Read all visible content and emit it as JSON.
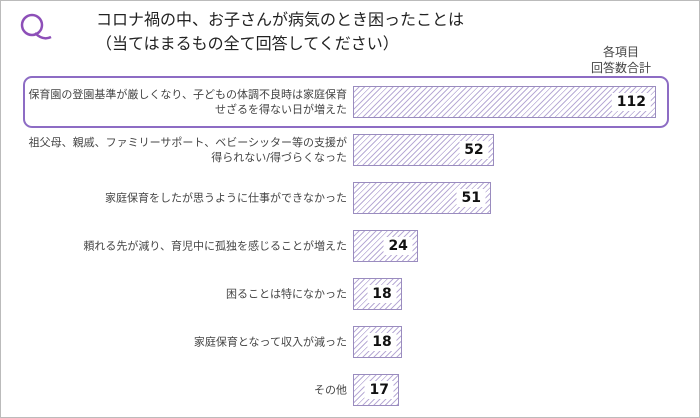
{
  "chart_data": {
    "type": "barh",
    "title": "コロナ禍の中、お子さんが病気のとき困ったことは",
    "subtitle": "（当てはまるもの全て回答してください）",
    "value_header": [
      "各項目",
      "回答数合計"
    ],
    "categories": [
      "保育園の登園基準が厳しくなり、子どもの体調不良時は家庭保育せざるを得ない日が増えた",
      "祖父母、親戚、ファミリーサポート、ベビーシッター等の支援が得られない/得づらくなった",
      "家庭保育をしたが思うように仕事ができなかった",
      "頼れる先が減り、育児中に孤独を感じることが増えた",
      "困ることは特になかった",
      "家庭保育となって収入が減った",
      "その他"
    ],
    "values": [
      112,
      52,
      51,
      24,
      18,
      18,
      17
    ],
    "color": "#b9acd6",
    "highlight_index": 0
  }
}
